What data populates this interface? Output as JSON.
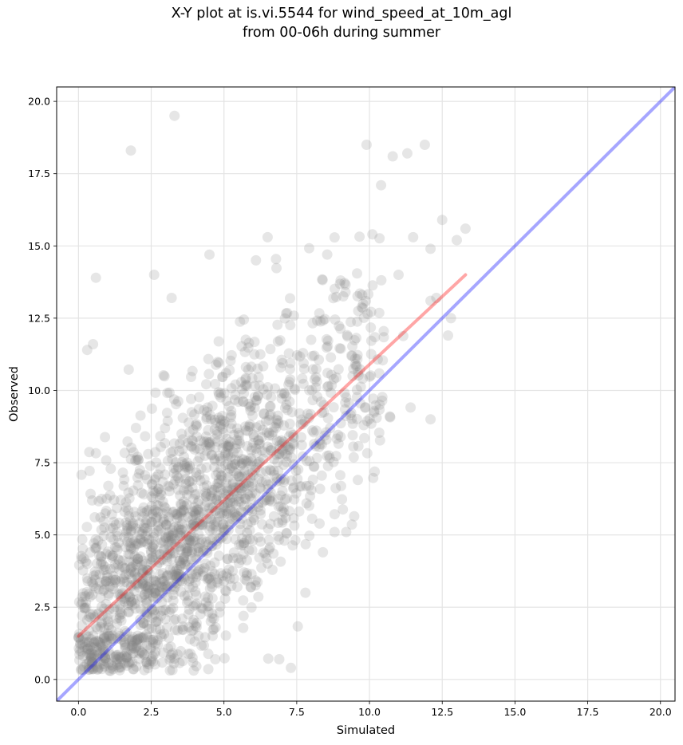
{
  "chart_data": {
    "type": "scatter",
    "title_line1": "X-Y plot at is.vi.5544 for wind_speed_at_10m_agl",
    "title_line2": "from 00-06h during summer",
    "xlabel": "Simulated",
    "ylabel": "Observed",
    "xlim": [
      -0.75,
      20.5
    ],
    "ylim": [
      -0.75,
      20.5
    ],
    "x_ticks": [
      "0.0",
      "2.5",
      "5.0",
      "7.5",
      "10.0",
      "12.5",
      "15.0",
      "17.5",
      "20.0"
    ],
    "y_ticks": [
      "0.0",
      "2.5",
      "5.0",
      "7.5",
      "10.0",
      "12.5",
      "15.0",
      "17.5",
      "20.0"
    ],
    "grid": true,
    "point_color": "#808080",
    "point_opacity": 0.2,
    "identity_line": {
      "color": "#0000ff",
      "opacity": 0.35,
      "from": [
        -0.75,
        -0.75
      ],
      "to": [
        20.5,
        20.5
      ]
    },
    "regression_line": {
      "color": "#ff0000",
      "opacity": 0.35,
      "from": [
        0.0,
        1.5
      ],
      "to": [
        13.3,
        14.0
      ]
    },
    "highlighted_points": [
      [
        3.3,
        19.5
      ],
      [
        1.8,
        18.3
      ],
      [
        9.9,
        18.5
      ],
      [
        10.8,
        18.1
      ],
      [
        11.3,
        18.2
      ],
      [
        11.9,
        18.5
      ],
      [
        10.4,
        17.1
      ],
      [
        12.5,
        15.9
      ],
      [
        13.3,
        15.6
      ],
      [
        13.0,
        15.2
      ],
      [
        12.1,
        14.9
      ],
      [
        0.6,
        13.9
      ],
      [
        2.6,
        14.0
      ],
      [
        3.2,
        13.2
      ],
      [
        12.1,
        13.1
      ],
      [
        12.3,
        13.2
      ],
      [
        12.8,
        12.5
      ],
      [
        12.7,
        11.9
      ],
      [
        12.1,
        9.0
      ],
      [
        10.7,
        9.1
      ],
      [
        0.3,
        11.4
      ],
      [
        0.5,
        11.6
      ],
      [
        6.5,
        15.3
      ],
      [
        4.5,
        14.7
      ],
      [
        6.1,
        14.5
      ],
      [
        10.1,
        15.4
      ],
      [
        11.5,
        15.3
      ],
      [
        11.0,
        14.0
      ],
      [
        9.8,
        8.8
      ],
      [
        9.6,
        6.9
      ],
      [
        8.8,
        5.1
      ],
      [
        9.2,
        5.1
      ],
      [
        8.4,
        4.4
      ],
      [
        7.8,
        3.0
      ],
      [
        7.3,
        0.4
      ],
      [
        6.9,
        0.7
      ],
      [
        1.1,
        0.3
      ],
      [
        0.3,
        4.0
      ],
      [
        0.1,
        2.6
      ],
      [
        4.7,
        0.7
      ]
    ]
  }
}
